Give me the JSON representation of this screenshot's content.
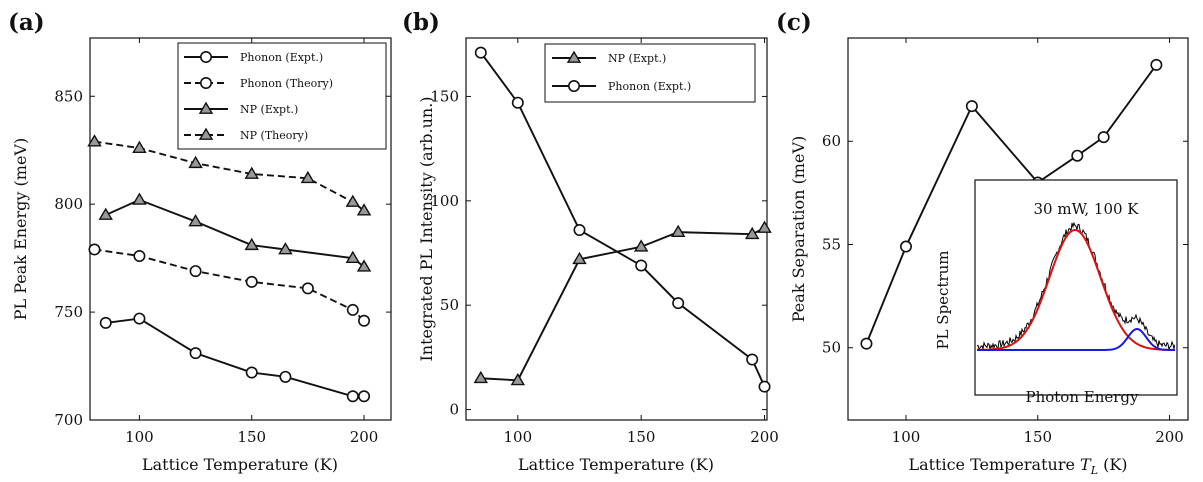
{
  "chart_data": [
    {
      "type": "line",
      "panel_label": "(a)",
      "xlabel": "Lattice Temperature (K)",
      "ylabel": "PL Peak Energy (meV)",
      "xlim": [
        78,
        212
      ],
      "ylim": [
        700,
        877
      ],
      "xticks": [
        100,
        150,
        200
      ],
      "yticks": [
        700,
        750,
        800,
        850
      ],
      "legend_position": "top-right",
      "series": [
        {
          "name": "Phonon (Expt.)",
          "marker": "circle",
          "dash": "solid",
          "x": [
            85,
            100,
            125,
            150,
            165,
            195,
            200
          ],
          "y": [
            745,
            747,
            731,
            722,
            720,
            711,
            711
          ]
        },
        {
          "name": "Phonon (Theory)",
          "marker": "circle",
          "dash": "dashed",
          "x": [
            80,
            100,
            125,
            150,
            175,
            195,
            200
          ],
          "y": [
            779,
            776,
            769,
            764,
            761,
            751,
            746
          ]
        },
        {
          "name": "NP (Expt.)",
          "marker": "triangle",
          "dash": "solid",
          "x": [
            85,
            100,
            125,
            150,
            165,
            195,
            200
          ],
          "y": [
            795,
            802,
            792,
            781,
            779,
            775,
            771
          ]
        },
        {
          "name": "NP (Theory)",
          "marker": "triangle",
          "dash": "dashed",
          "x": [
            80,
            100,
            125,
            150,
            175,
            195,
            200
          ],
          "y": [
            829,
            826,
            819,
            814,
            812,
            801,
            797
          ]
        }
      ]
    },
    {
      "type": "line",
      "panel_label": "(b)",
      "xlabel": "Lattice Temperature (K)",
      "ylabel": "Integrated PL Intensity (arb.un.)",
      "xlim": [
        79,
        201
      ],
      "ylim": [
        -5,
        178
      ],
      "xticks": [
        100,
        150,
        200
      ],
      "yticks": [
        0,
        50,
        100,
        150
      ],
      "legend_position": "top-right",
      "series": [
        {
          "name": "NP (Expt.)",
          "marker": "triangle",
          "dash": "solid",
          "x": [
            85,
            100,
            125,
            150,
            165,
            195,
            200
          ],
          "y": [
            15,
            14,
            72,
            78,
            85,
            84,
            87
          ]
        },
        {
          "name": "Phonon (Expt.)",
          "marker": "circle",
          "dash": "solid",
          "x": [
            85,
            100,
            125,
            150,
            165,
            195,
            200
          ],
          "y": [
            171,
            147,
            86,
            69,
            51,
            24,
            11
          ]
        }
      ]
    },
    {
      "type": "line",
      "panel_label": "(c)",
      "xlabel": "Lattice Temperature T_L (K)",
      "ylabel": "Peak Separation (meV)",
      "xlim": [
        78,
        207
      ],
      "ylim": [
        46.5,
        65
      ],
      "xticks": [
        100,
        150,
        200
      ],
      "yticks": [
        50,
        55,
        60
      ],
      "series": [
        {
          "marker": "circle",
          "dash": "solid",
          "x": [
            85,
            100,
            125,
            150,
            165,
            175,
            195
          ],
          "y": [
            50.2,
            54.9,
            61.7,
            58.0,
            59.3,
            60.2,
            63.7
          ]
        }
      ],
      "inset": {
        "annotation": "30 mW, 100 K",
        "ylabel": "PL Spectrum",
        "xlabel": "Photon Energy",
        "line_colors": {
          "data": "#000000",
          "fit_main": "#e01010",
          "fit_minor": "#1a1ae0"
        }
      }
    }
  ]
}
